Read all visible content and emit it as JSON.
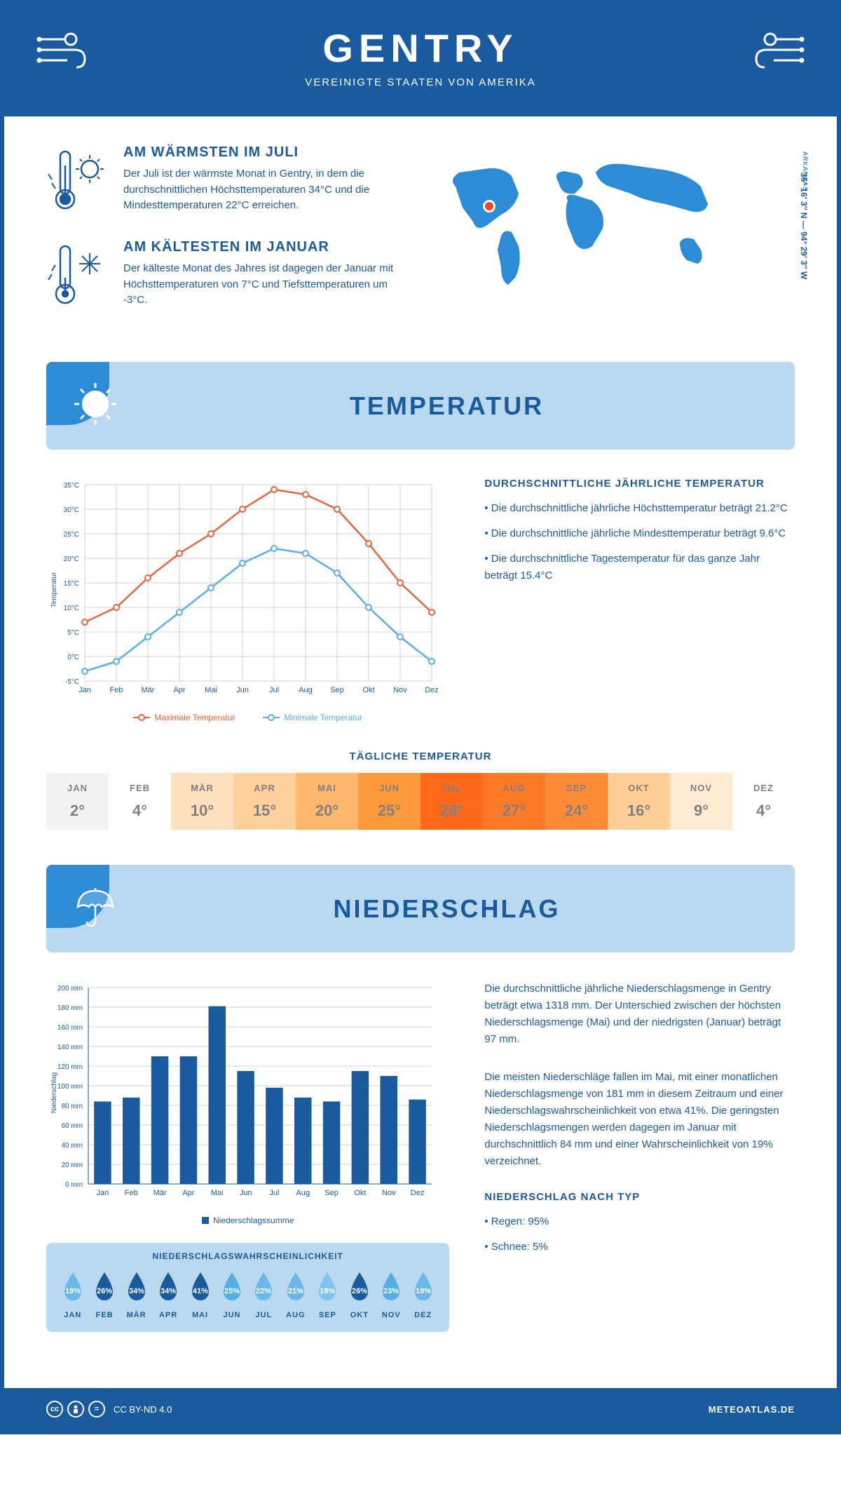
{
  "header": {
    "title": "GENTRY",
    "subtitle": "VEREINIGTE STAATEN VON AMERIKA"
  },
  "intro": {
    "warm": {
      "title": "AM WÄRMSTEN IM JULI",
      "text": "Der Juli ist der wärmste Monat in Gentry, in dem die durchschnittlichen Höchsttemperaturen 34°C und die Mindesttemperaturen 22°C erreichen."
    },
    "cold": {
      "title": "AM KÄLTESTEN IM JANUAR",
      "text": "Der kälteste Monat des Jahres ist dagegen der Januar mit Höchsttemperaturen von 7°C und Tiefsttemperaturen um -3°C."
    },
    "coords": "36° 16′ 3″ N — 94° 29′ 3″ W",
    "state": "ARKANSAS"
  },
  "temperature": {
    "section_title": "TEMPERATUR",
    "chart": {
      "type": "line",
      "months": [
        "Jan",
        "Feb",
        "Mär",
        "Apr",
        "Mai",
        "Jun",
        "Jul",
        "Aug",
        "Sep",
        "Okt",
        "Nov",
        "Dez"
      ],
      "max_series": [
        7,
        10,
        16,
        21,
        25,
        30,
        34,
        33,
        30,
        23,
        15,
        9
      ],
      "min_series": [
        -3,
        -1,
        4,
        9,
        14,
        19,
        22,
        21,
        17,
        10,
        4,
        -1
      ],
      "max_color": "#e8643c",
      "min_color": "#5aaee5",
      "ylabel": "Temperatur",
      "ymin": -5,
      "ymax": 35,
      "ystep": 5,
      "grid_color": "#d0d0d0",
      "legend_max": "Maximale Temperatur",
      "legend_min": "Minimale Temperatur"
    },
    "annual": {
      "title": "DURCHSCHNITTLICHE JÄHRLICHE TEMPERATUR",
      "bullets": [
        "• Die durchschnittliche jährliche Höchsttemperatur beträgt 21.2°C",
        "• Die durchschnittliche jährliche Mindesttemperatur beträgt 9.6°C",
        "• Die durchschnittliche Tagestemperatur für das ganze Jahr beträgt 15.4°C"
      ]
    },
    "daily": {
      "title": "TÄGLICHE TEMPERATUR",
      "months": [
        "JAN",
        "FEB",
        "MÄR",
        "APR",
        "MAI",
        "JUN",
        "JUL",
        "AUG",
        "SEP",
        "OKT",
        "NOV",
        "DEZ"
      ],
      "values": [
        "2°",
        "4°",
        "10°",
        "15°",
        "20°",
        "25°",
        "28°",
        "27°",
        "24°",
        "16°",
        "9°",
        "4°"
      ],
      "colors": [
        "#f3f3f3",
        "#ffffff",
        "#ffe0bd",
        "#ffd19c",
        "#ffb86b",
        "#ff9a3c",
        "#ff6a1a",
        "#ff7a28",
        "#ff8a38",
        "#ffcf97",
        "#ffead2",
        "#ffffff"
      ]
    }
  },
  "precipitation": {
    "section_title": "NIEDERSCHLAG",
    "chart": {
      "type": "bar",
      "months": [
        "Jan",
        "Feb",
        "Mär",
        "Apr",
        "Mai",
        "Jun",
        "Jul",
        "Aug",
        "Sep",
        "Okt",
        "Nov",
        "Dez"
      ],
      "values": [
        84,
        88,
        130,
        130,
        181,
        115,
        98,
        88,
        84,
        115,
        110,
        86
      ],
      "bar_color": "#1a5a9e",
      "ylabel": "Niederschlag",
      "ymin": 0,
      "ymax": 200,
      "ystep": 20,
      "grid_color": "#d0d0d0",
      "legend": "Niederschlagssumme"
    },
    "text": {
      "p1": "Die durchschnittliche jährliche Niederschlagsmenge in Gentry beträgt etwa 1318 mm. Der Unterschied zwischen der höchsten Niederschlagsmenge (Mai) und der niedrigsten (Januar) beträgt 97 mm.",
      "p2": "Die meisten Niederschläge fallen im Mai, mit einer monatlichen Niederschlagsmenge von 181 mm in diesem Zeitraum und einer Niederschlagswahrscheinlichkeit von etwa 41%. Die geringsten Niederschlagsmengen werden dagegen im Januar mit durchschnittlich 84 mm und einer Wahrscheinlichkeit von 19% verzeichnet.",
      "type_title": "NIEDERSCHLAG NACH TYP",
      "type_bullets": [
        "• Regen: 95%",
        "• Schnee: 5%"
      ]
    },
    "probability": {
      "title": "NIEDERSCHLAGSWAHRSCHEINLICHKEIT",
      "months": [
        "JAN",
        "FEB",
        "MÄR",
        "APR",
        "MAI",
        "JUN",
        "JUL",
        "AUG",
        "SEP",
        "OKT",
        "NOV",
        "DEZ"
      ],
      "values": [
        "19%",
        "26%",
        "34%",
        "34%",
        "41%",
        "25%",
        "22%",
        "21%",
        "18%",
        "26%",
        "23%",
        "19%"
      ],
      "colors": [
        "#6ab7e8",
        "#1a5a9e",
        "#1a5a9e",
        "#1a5a9e",
        "#1a5a9e",
        "#56aee5",
        "#6ab7e8",
        "#6ab7e8",
        "#7fc4ec",
        "#1a5a9e",
        "#56aee5",
        "#6ab7e8"
      ]
    }
  },
  "footer": {
    "license": "CC BY-ND 4.0",
    "site": "METEOATLAS.DE"
  }
}
